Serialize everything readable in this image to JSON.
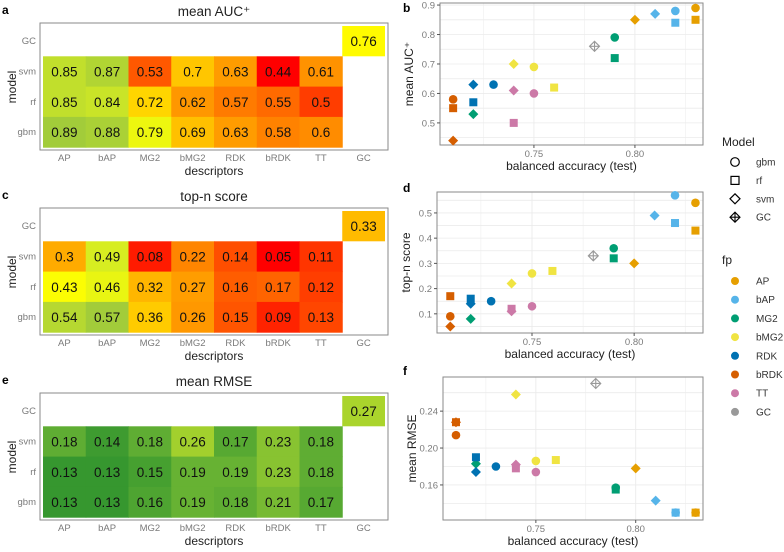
{
  "legend": {
    "model_title": "Model",
    "models": [
      "gbm",
      "rf",
      "svm",
      "GC"
    ],
    "fp_title": "fp",
    "fps": [
      "AP",
      "bAP",
      "MG2",
      "bMG2",
      "RDK",
      "bRDK",
      "TT",
      "GC"
    ],
    "fp_colors": {
      "AP": "#E69F00",
      "bAP": "#56B4E9",
      "MG2": "#009E73",
      "bMG2": "#F0E442",
      "RDK": "#0072B2",
      "bRDK": "#D55E00",
      "TT": "#CC79A7",
      "GC": "#999999"
    }
  },
  "chart_data": [
    {
      "panel": "a",
      "type": "heatmap",
      "title": "mean AUC⁺",
      "xlabel": "descriptors",
      "ylabel": "model",
      "x_categories": [
        "AP",
        "bAP",
        "MG2",
        "bMG2",
        "RDK",
        "bRDK",
        "TT",
        "GC"
      ],
      "y_categories": [
        "GC",
        "svm",
        "rf",
        "gbm"
      ],
      "rows": {
        "svm": [
          "0.85",
          "0.87",
          "0.53",
          "0.7",
          "0.63",
          "0.44",
          "0.61"
        ],
        "rf": [
          "0.85",
          "0.84",
          "0.72",
          "0.62",
          "0.57",
          "0.55",
          "0.5"
        ],
        "gbm": [
          "0.89",
          "0.88",
          "0.79",
          "0.69",
          "0.63",
          "0.58",
          "0.6"
        ]
      },
      "GC": "0.76",
      "palette": "red-yellow-green",
      "range": [
        0.44,
        0.89
      ]
    },
    {
      "panel": "b",
      "type": "scatter",
      "xlabel": "balanced accuracy (test)",
      "ylabel": "mean AUC⁺",
      "xlim": [
        0.7035,
        0.8337
      ],
      "ylim": [
        0.425,
        0.907
      ],
      "xticks": [
        "0.75",
        "0.80"
      ],
      "yticks": [
        "0.5",
        "0.6",
        "0.7",
        "0.8",
        "0.9"
      ],
      "points": [
        [
          "AP",
          "gbm",
          0.83,
          0.89
        ],
        [
          "AP",
          "rf",
          0.83,
          0.85
        ],
        [
          "AP",
          "svm",
          0.8,
          0.85
        ],
        [
          "bAP",
          "gbm",
          0.82,
          0.88
        ],
        [
          "bAP",
          "rf",
          0.82,
          0.84
        ],
        [
          "bAP",
          "svm",
          0.81,
          0.87
        ],
        [
          "MG2",
          "gbm",
          0.79,
          0.79
        ],
        [
          "MG2",
          "rf",
          0.79,
          0.72
        ],
        [
          "MG2",
          "svm",
          0.72,
          0.53
        ],
        [
          "bMG2",
          "gbm",
          0.75,
          0.69
        ],
        [
          "bMG2",
          "rf",
          0.76,
          0.62
        ],
        [
          "bMG2",
          "svm",
          0.74,
          0.7
        ],
        [
          "RDK",
          "gbm",
          0.73,
          0.63
        ],
        [
          "RDK",
          "rf",
          0.72,
          0.57
        ],
        [
          "RDK",
          "svm",
          0.72,
          0.63
        ],
        [
          "bRDK",
          "gbm",
          0.71,
          0.58
        ],
        [
          "bRDK",
          "rf",
          0.71,
          0.55
        ],
        [
          "bRDK",
          "svm",
          0.71,
          0.44
        ],
        [
          "TT",
          "gbm",
          0.75,
          0.6
        ],
        [
          "TT",
          "rf",
          0.74,
          0.5
        ],
        [
          "TT",
          "svm",
          0.74,
          0.61
        ],
        [
          "GC",
          "GC",
          0.78,
          0.76
        ]
      ]
    },
    {
      "panel": "c",
      "type": "heatmap",
      "title": "top-n score",
      "xlabel": "descriptors",
      "ylabel": "model",
      "x_categories": [
        "AP",
        "bAP",
        "MG2",
        "bMG2",
        "RDK",
        "bRDK",
        "TT",
        "GC"
      ],
      "y_categories": [
        "GC",
        "svm",
        "rf",
        "gbm"
      ],
      "rows": {
        "svm": [
          "0.3",
          "0.49",
          "0.08",
          "0.22",
          "0.14",
          "0.05",
          "0.11"
        ],
        "rf": [
          "0.43",
          "0.46",
          "0.32",
          "0.27",
          "0.16",
          "0.17",
          "0.12"
        ],
        "gbm": [
          "0.54",
          "0.57",
          "0.36",
          "0.26",
          "0.15",
          "0.09",
          "0.13"
        ]
      },
      "GC": "0.33",
      "palette": "red-yellow-green",
      "range": [
        0.05,
        0.57
      ]
    },
    {
      "panel": "d",
      "type": "scatter",
      "xlabel": "balanced accuracy (test)",
      "ylabel": "top-n score",
      "xlim": [
        0.7035,
        0.8337
      ],
      "ylim": [
        0.024,
        0.583
      ],
      "xticks": [
        "0.75",
        "0.80"
      ],
      "yticks": [
        "0.1",
        "0.2",
        "0.3",
        "0.4",
        "0.5"
      ],
      "points": [
        [
          "AP",
          "gbm",
          0.83,
          0.54
        ],
        [
          "AP",
          "rf",
          0.83,
          0.43
        ],
        [
          "AP",
          "svm",
          0.8,
          0.3
        ],
        [
          "bAP",
          "gbm",
          0.82,
          0.57
        ],
        [
          "bAP",
          "rf",
          0.82,
          0.46
        ],
        [
          "bAP",
          "svm",
          0.81,
          0.49
        ],
        [
          "MG2",
          "gbm",
          0.79,
          0.36
        ],
        [
          "MG2",
          "rf",
          0.79,
          0.32
        ],
        [
          "MG2",
          "svm",
          0.72,
          0.08
        ],
        [
          "bMG2",
          "gbm",
          0.75,
          0.26
        ],
        [
          "bMG2",
          "rf",
          0.76,
          0.27
        ],
        [
          "bMG2",
          "svm",
          0.74,
          0.22
        ],
        [
          "RDK",
          "gbm",
          0.73,
          0.15
        ],
        [
          "RDK",
          "rf",
          0.72,
          0.16
        ],
        [
          "RDK",
          "svm",
          0.72,
          0.14
        ],
        [
          "bRDK",
          "gbm",
          0.71,
          0.09
        ],
        [
          "bRDK",
          "rf",
          0.71,
          0.17
        ],
        [
          "bRDK",
          "svm",
          0.71,
          0.05
        ],
        [
          "TT",
          "gbm",
          0.75,
          0.13
        ],
        [
          "TT",
          "rf",
          0.74,
          0.12
        ],
        [
          "TT",
          "svm",
          0.74,
          0.11
        ],
        [
          "GC",
          "GC",
          0.78,
          0.33
        ]
      ]
    },
    {
      "panel": "e",
      "type": "heatmap",
      "title": "mean RMSE",
      "xlabel": "descriptors",
      "ylabel": "model",
      "x_categories": [
        "AP",
        "bAP",
        "MG2",
        "bMG2",
        "RDK",
        "bRDK",
        "TT",
        "GC"
      ],
      "y_categories": [
        "GC",
        "svm",
        "rf",
        "gbm"
      ],
      "rows": {
        "svm": [
          "0.18",
          "0.14",
          "0.18",
          "0.26",
          "0.17",
          "0.23",
          "0.18"
        ],
        "rf": [
          "0.13",
          "0.13",
          "0.15",
          "0.19",
          "0.19",
          "0.23",
          "0.18"
        ],
        "gbm": [
          "0.13",
          "0.13",
          "0.16",
          "0.19",
          "0.18",
          "0.21",
          "0.17"
        ]
      },
      "GC": "0.27",
      "palette": "green",
      "range": [
        0.13,
        0.27
      ]
    },
    {
      "panel": "f",
      "type": "scatter",
      "xlabel": "balanced accuracy (test)",
      "ylabel": "mean RMSE",
      "xlim": [
        0.7035,
        0.8337
      ],
      "ylim": [
        0.122,
        0.277
      ],
      "xticks": [
        "0.75",
        "0.80"
      ],
      "yticks": [
        "0.16",
        "0.20",
        "0.24"
      ],
      "points": [
        [
          "AP",
          "gbm",
          0.83,
          0.13
        ],
        [
          "AP",
          "rf",
          0.83,
          0.13
        ],
        [
          "AP",
          "svm",
          0.8,
          0.178
        ],
        [
          "bAP",
          "gbm",
          0.82,
          0.13
        ],
        [
          "bAP",
          "rf",
          0.82,
          0.13
        ],
        [
          "bAP",
          "svm",
          0.81,
          0.143
        ],
        [
          "MG2",
          "gbm",
          0.79,
          0.157
        ],
        [
          "MG2",
          "rf",
          0.79,
          0.155
        ],
        [
          "MG2",
          "svm",
          0.72,
          0.183
        ],
        [
          "bMG2",
          "gbm",
          0.75,
          0.186
        ],
        [
          "bMG2",
          "rf",
          0.76,
          0.187
        ],
        [
          "bMG2",
          "svm",
          0.74,
          0.258
        ],
        [
          "RDK",
          "gbm",
          0.73,
          0.18
        ],
        [
          "RDK",
          "rf",
          0.72,
          0.19
        ],
        [
          "RDK",
          "svm",
          0.72,
          0.174
        ],
        [
          "bRDK",
          "gbm",
          0.71,
          0.214
        ],
        [
          "bRDK",
          "rf",
          0.71,
          0.228
        ],
        [
          "bRDK",
          "svm",
          0.71,
          0.228
        ],
        [
          "TT",
          "gbm",
          0.75,
          0.174
        ],
        [
          "TT",
          "rf",
          0.74,
          0.178
        ],
        [
          "TT",
          "svm",
          0.74,
          0.182
        ],
        [
          "GC",
          "GC",
          0.78,
          0.27
        ]
      ]
    }
  ]
}
